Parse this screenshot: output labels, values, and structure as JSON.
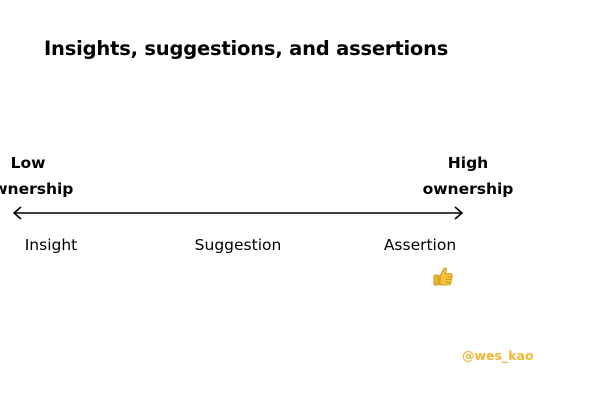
{
  "title": "Insights, suggestions, and assertions",
  "scale": {
    "low_end": [
      "Low",
      "ownership"
    ],
    "high_end": [
      "High",
      "ownership"
    ],
    "points": [
      "Insight",
      "Suggestion",
      "Assertion"
    ],
    "approved_point": "Assertion",
    "approved_icon": "thumbs-up-icon"
  },
  "handle": "@wes_kao",
  "colors": {
    "text": "#000000",
    "handle": "#f2b632",
    "thumb": "#f5c23a"
  }
}
